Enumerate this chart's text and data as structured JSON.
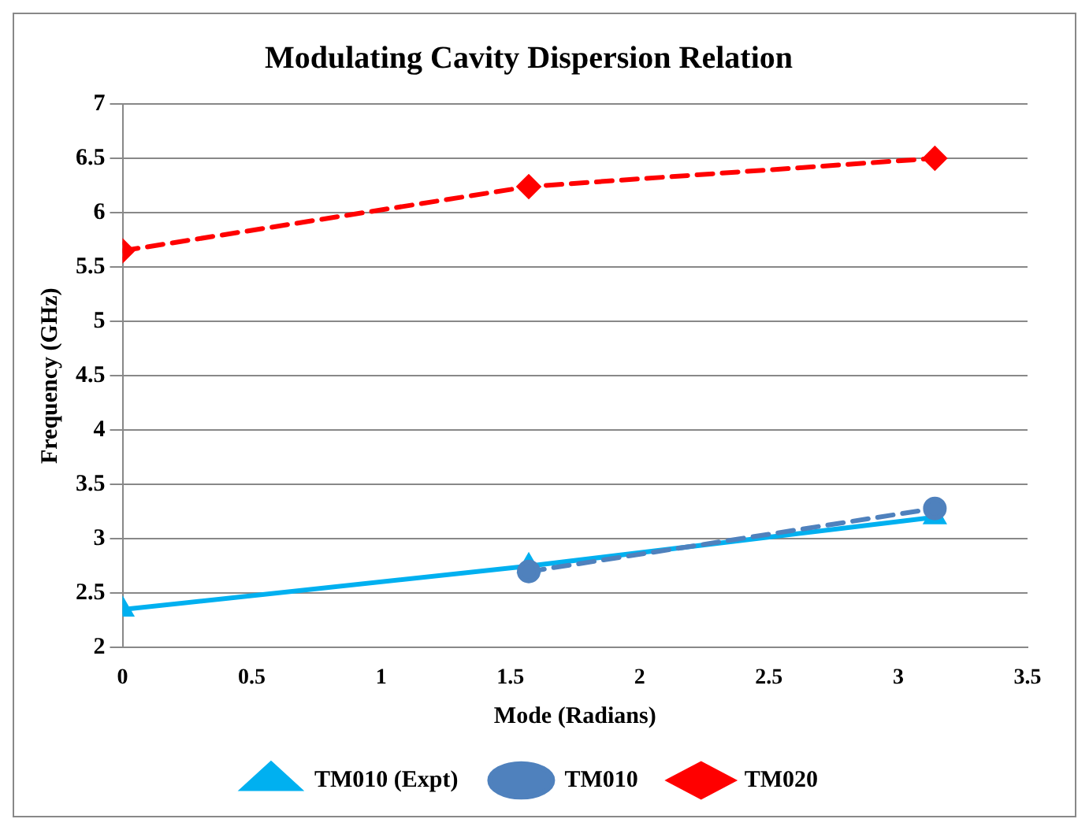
{
  "chart_data": {
    "type": "line",
    "title": "Modulating Cavity Dispersion Relation",
    "xlabel": "Mode (Radians)",
    "ylabel": "Frequency (GHz)",
    "xlim": [
      0,
      3.5
    ],
    "xticks": [
      0,
      0.5,
      1,
      1.5,
      2,
      2.5,
      3,
      3.5
    ],
    "ylim": [
      2,
      7
    ],
    "yticks": [
      2,
      2.5,
      3,
      3.5,
      4,
      4.5,
      5,
      5.5,
      6,
      6.5,
      7
    ],
    "grid": "y",
    "legend": "bottom",
    "series": [
      {
        "name": "TM010 (Expt)",
        "color": "#00b0f0",
        "x": [
          0,
          1.571,
          3.1416
        ],
        "values": [
          2.35,
          2.75,
          3.2
        ],
        "marker": "triangle",
        "line_style": "solid"
      },
      {
        "name": "TM010",
        "color": "#4f81bd",
        "x": [
          1.571,
          3.1416
        ],
        "values": [
          2.7,
          3.28
        ],
        "marker": "circle",
        "line_style": "dashed"
      },
      {
        "name": "TM020",
        "color": "#ff0000",
        "x": [
          0,
          1.571,
          3.1416
        ],
        "values": [
          5.65,
          6.24,
          6.5
        ],
        "marker": "diamond",
        "line_style": "dashed"
      }
    ]
  }
}
